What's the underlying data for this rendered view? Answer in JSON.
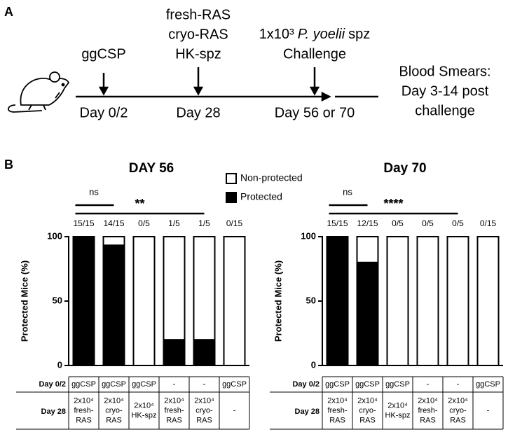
{
  "panel_labels": [
    "A",
    "B"
  ],
  "timeline": {
    "events": [
      {
        "above": [
          "ggCSP"
        ],
        "below": "Day 0/2"
      },
      {
        "above": [
          "fresh-RAS",
          "cryo-RAS",
          "HK-spz"
        ],
        "below": "Day 28"
      },
      {
        "above": [
          "Challenge"
        ],
        "below": "Day 56 or 70"
      }
    ],
    "challenge_dose": [
      "1x10³",
      "P. yoelii",
      "spz"
    ],
    "end_note": [
      "Blood Smears:",
      "Day 3-14 post",
      "challenge"
    ]
  },
  "chart_data": [
    {
      "type": "bar",
      "stacked": true,
      "title": "DAY 56",
      "y_label": "Protected Mice (%)",
      "ylim": [
        0,
        100
      ],
      "yticks": [
        0,
        50,
        100
      ],
      "categories": [
        null,
        null,
        null,
        null,
        null,
        null
      ],
      "series": [
        {
          "name": "Protected",
          "color": "#000000",
          "values": [
            100,
            93.33,
            0,
            20,
            20,
            0
          ],
          "value_labels": [
            "15/15",
            "14/15",
            "0/5",
            "1/5",
            "1/5",
            "0/15"
          ]
        },
        {
          "name": "Non-protected",
          "color": "#ffffff",
          "values": [
            0,
            6.67,
            100,
            80,
            80,
            100
          ]
        }
      ],
      "annotations": [
        "ns",
        "**"
      ],
      "table": {
        "row_labels": [
          "Day 0/2",
          "Day 28"
        ],
        "rows": [
          [
            "ggCSP",
            "ggCSP",
            "ggCSP",
            "-",
            "-",
            "ggCSP"
          ],
          [
            [
              "2x10⁴",
              "fresh-",
              "RAS"
            ],
            [
              "2x10⁴",
              "cryo-",
              "RAS"
            ],
            [
              "2x10⁴",
              "HK-spz"
            ],
            [
              "2x10⁴",
              "fresh-",
              "RAS"
            ],
            [
              "2x10⁴",
              "cryo-",
              "RAS"
            ],
            [
              "-"
            ]
          ]
        ]
      }
    },
    {
      "type": "bar",
      "stacked": true,
      "title": "Day 70",
      "y_label": "Protected Mice (%)",
      "ylim": [
        0,
        100
      ],
      "yticks": [
        0,
        50,
        100
      ],
      "categories": [
        null,
        null,
        null,
        null,
        null,
        null
      ],
      "series": [
        {
          "name": "Protected",
          "color": "#000000",
          "values": [
            100,
            80,
            0,
            0,
            0,
            0
          ],
          "value_labels": [
            "15/15",
            "12/15",
            "0/5",
            "0/5",
            "0/5",
            "0/15"
          ]
        },
        {
          "name": "Non-protected",
          "color": "#ffffff",
          "values": [
            0,
            20,
            100,
            100,
            100,
            100
          ]
        }
      ],
      "annotations": [
        "ns",
        "****"
      ],
      "table": {
        "row_labels": [
          "Day 0/2",
          "Day 28"
        ],
        "rows": [
          [
            "ggCSP",
            "ggCSP",
            "ggCSP",
            "-",
            "-",
            "ggCSP"
          ],
          [
            [
              "2x10⁴",
              "fresh-",
              "RAS"
            ],
            [
              "2x10⁴",
              "cryo-",
              "RAS"
            ],
            [
              "2x10⁴",
              "HK-spz"
            ],
            [
              "2x10⁴",
              "fresh-",
              "RAS"
            ],
            [
              "2x10⁴",
              "cryo-",
              "RAS"
            ],
            [
              "-"
            ]
          ]
        ]
      }
    }
  ]
}
